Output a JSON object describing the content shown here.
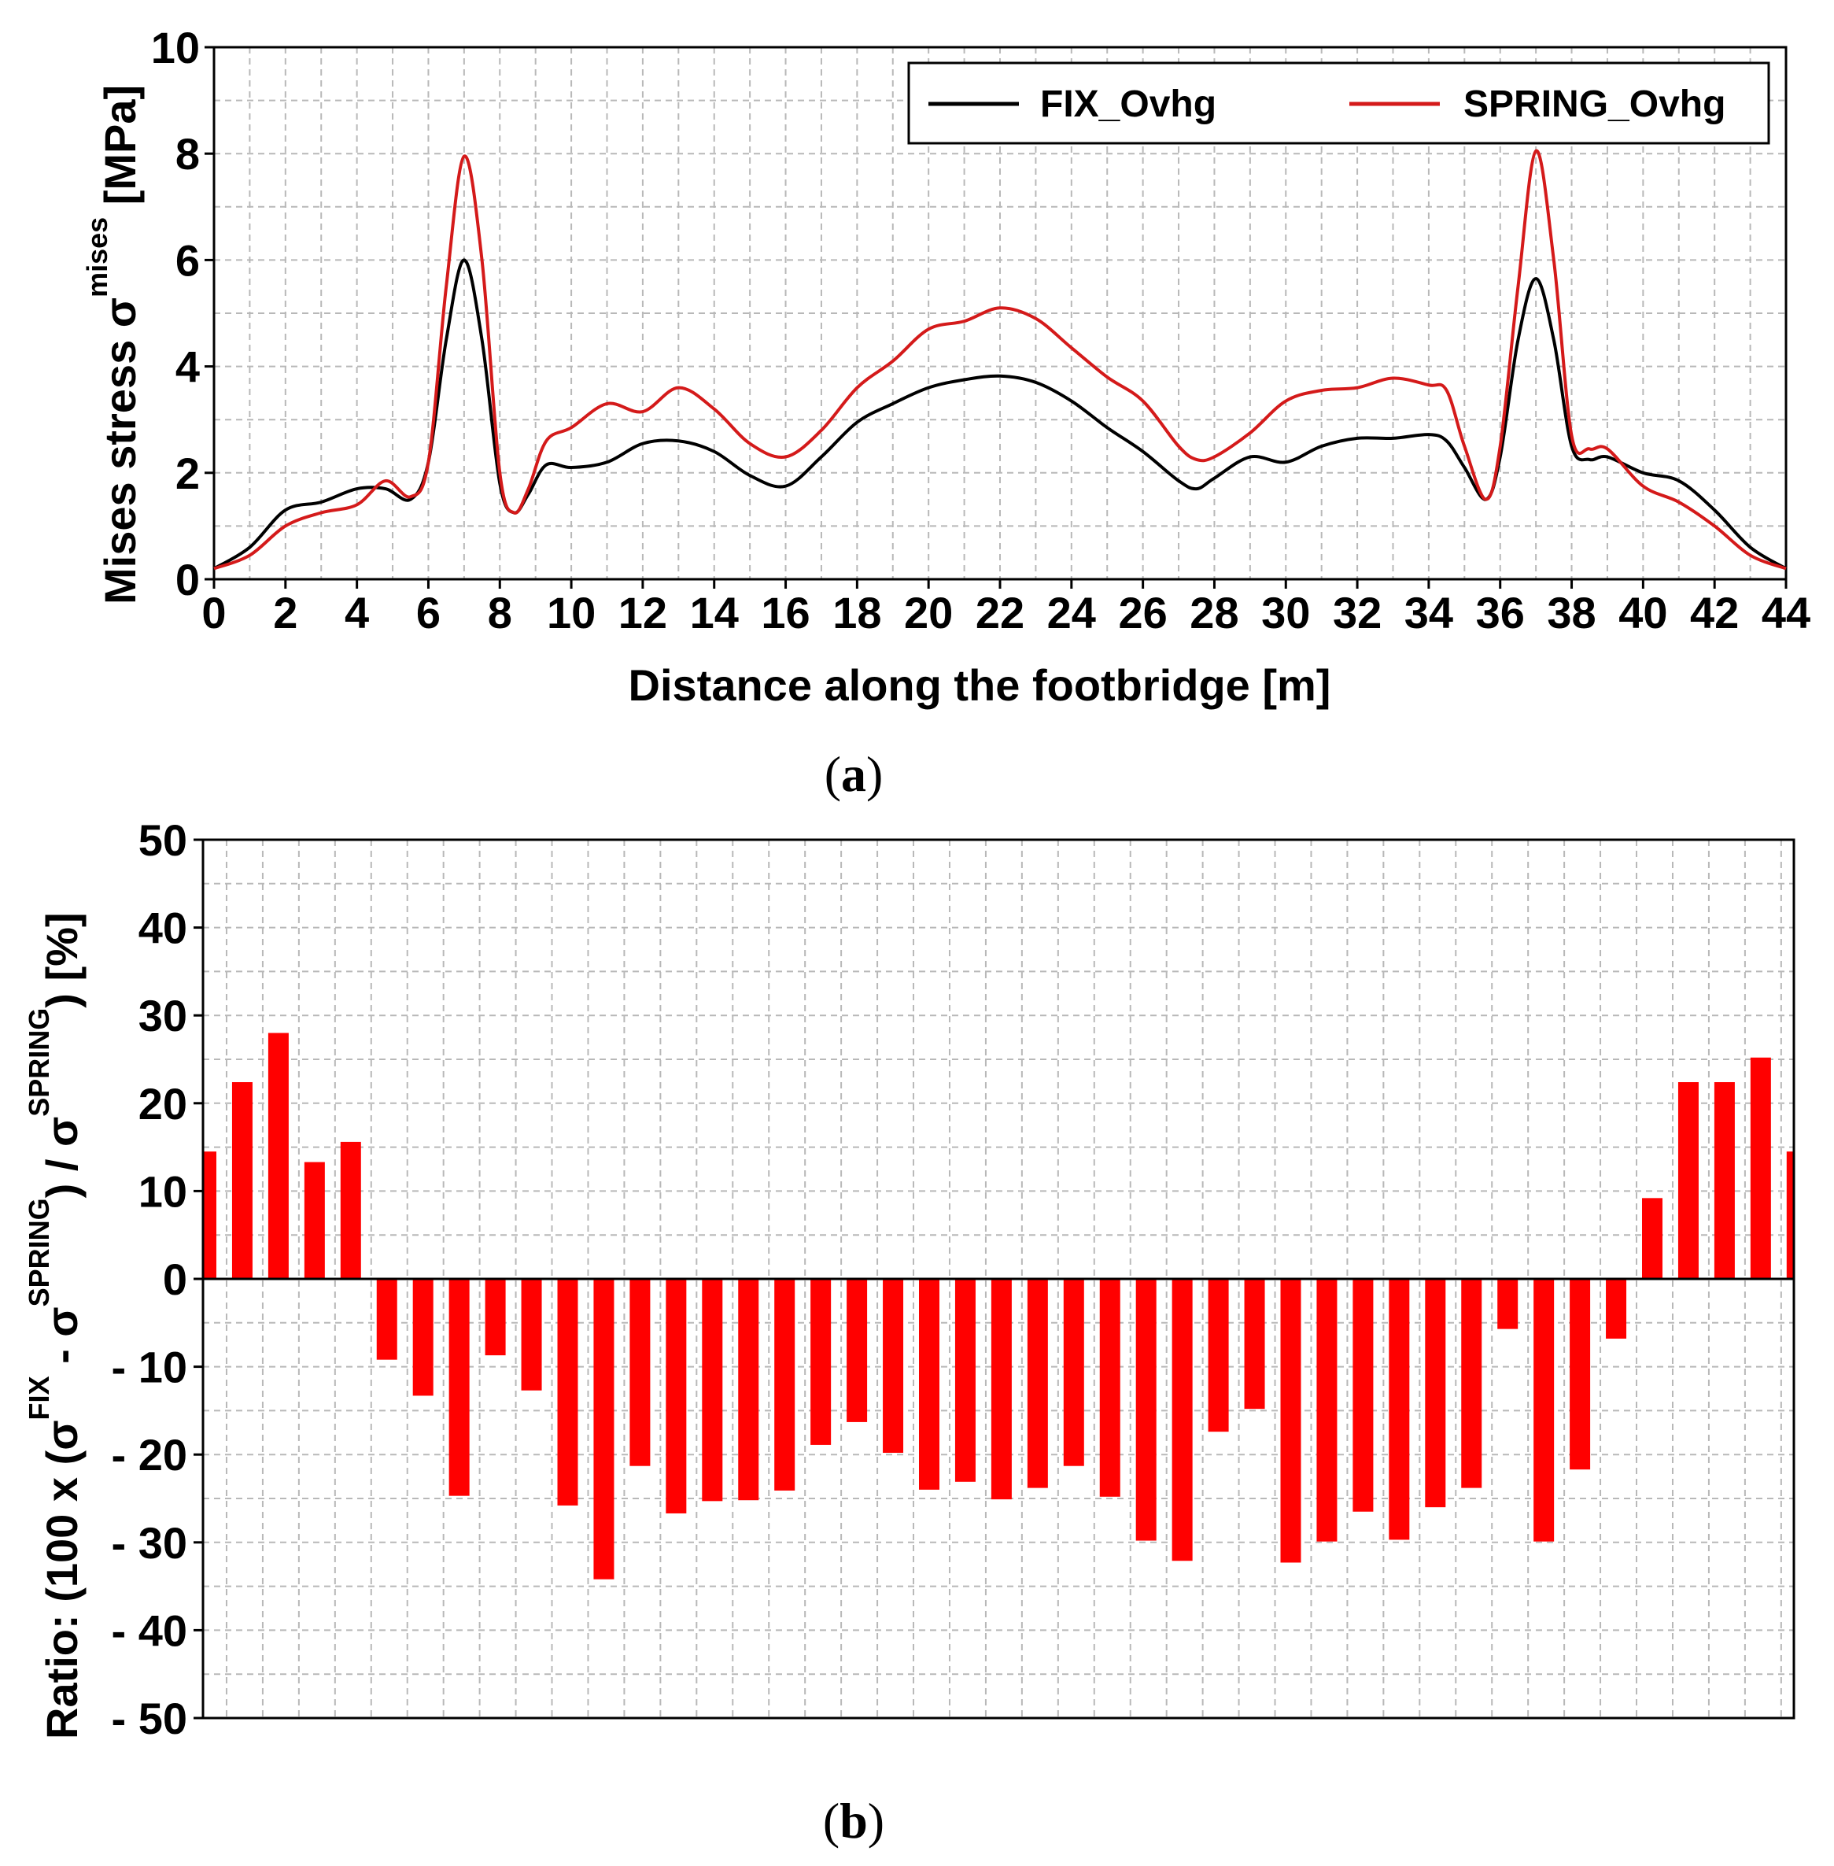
{
  "chart_data": [
    {
      "id": "a",
      "type": "line",
      "caption": "a",
      "xlabel": "Distance along the footbridge [m]",
      "ylabel": {
        "main": "Mises stress σ",
        "sup": "mises",
        "unit": "[MPa]"
      },
      "xlim": [
        0,
        44
      ],
      "ylim": [
        0,
        10
      ],
      "xticks": [
        "0",
        "2",
        "4",
        "6",
        "8",
        "10",
        "12",
        "14",
        "16",
        "18",
        "20",
        "22",
        "24",
        "26",
        "28",
        "30",
        "32",
        "34",
        "36",
        "38",
        "40",
        "42",
        "44"
      ],
      "yticks": [
        "0",
        "2",
        "4",
        "6",
        "8",
        "10"
      ],
      "grid": true,
      "legend_position": "top-right",
      "series": [
        {
          "name": "FIX_Ovhg",
          "color": "#000000",
          "x": [
            0,
            1,
            2,
            3,
            4,
            4.8,
            5.5,
            6,
            6.5,
            7,
            7.5,
            8,
            8.4,
            8.8,
            9.3,
            10,
            11,
            12,
            13,
            14,
            15,
            16,
            17,
            18,
            19,
            20,
            21,
            22,
            23,
            24,
            25,
            26,
            27,
            27.5,
            28,
            29,
            30,
            31,
            32,
            33,
            34,
            34.5,
            35,
            35.6,
            36,
            36.5,
            37,
            37.5,
            38,
            38.5,
            39,
            40,
            41,
            42,
            43,
            44
          ],
          "y": [
            0.2,
            0.6,
            1.3,
            1.45,
            1.7,
            1.7,
            1.5,
            2.2,
            4.5,
            6.0,
            4.5,
            1.8,
            1.25,
            1.6,
            2.15,
            2.1,
            2.2,
            2.55,
            2.6,
            2.4,
            1.95,
            1.75,
            2.3,
            2.95,
            3.3,
            3.6,
            3.75,
            3.82,
            3.7,
            3.35,
            2.85,
            2.4,
            1.85,
            1.7,
            1.9,
            2.3,
            2.2,
            2.5,
            2.65,
            2.65,
            2.72,
            2.6,
            2.1,
            1.5,
            2.3,
            4.5,
            5.65,
            4.5,
            2.5,
            2.25,
            2.3,
            2.0,
            1.85,
            1.3,
            0.6,
            0.2
          ]
        },
        {
          "name": "SPRING_Ovhg",
          "color": "#d41a1a",
          "x": [
            0,
            1,
            2,
            3,
            4,
            4.8,
            5.5,
            6,
            6.5,
            7,
            7.5,
            8,
            8.4,
            8.8,
            9.3,
            10,
            11,
            12,
            13,
            14,
            15,
            16,
            17,
            18,
            19,
            20,
            21,
            22,
            23,
            24,
            25,
            26,
            27,
            27.5,
            28,
            29,
            30,
            31,
            32,
            33,
            34,
            34.5,
            35,
            35.6,
            36,
            36.5,
            37,
            37.5,
            38,
            38.5,
            39,
            40,
            41,
            42,
            43,
            44
          ],
          "y": [
            0.2,
            0.45,
            1.0,
            1.25,
            1.4,
            1.85,
            1.55,
            2.2,
            5.5,
            7.95,
            6.0,
            2.0,
            1.25,
            1.7,
            2.6,
            2.85,
            3.3,
            3.15,
            3.6,
            3.2,
            2.55,
            2.3,
            2.8,
            3.6,
            4.1,
            4.7,
            4.85,
            5.1,
            4.9,
            4.35,
            3.8,
            3.35,
            2.5,
            2.25,
            2.3,
            2.75,
            3.35,
            3.55,
            3.6,
            3.78,
            3.65,
            3.55,
            2.5,
            1.5,
            2.5,
            5.5,
            8.05,
            6.0,
            2.7,
            2.45,
            2.45,
            1.75,
            1.45,
            1.0,
            0.45,
            0.2
          ]
        }
      ]
    },
    {
      "id": "b",
      "type": "bar",
      "caption": "b",
      "ylabel": {
        "prefix": "Ratio: (100 x (σ",
        "sup1": "FIX",
        "mid1": " - σ",
        "sup2": "SPRING",
        "mid2": ") / σ",
        "sup3": "SPRING",
        "suffix": ") [%]"
      },
      "ylim": [
        -50,
        50
      ],
      "yticks": [
        "50",
        "40",
        "30",
        "20",
        "10",
        "0",
        "- 10",
        "- 20",
        "- 30",
        "- 40",
        "- 50"
      ],
      "grid": true,
      "color": "#ff0000",
      "x": [
        0,
        1,
        2,
        3,
        4,
        5,
        6,
        7,
        8,
        9,
        10,
        11,
        12,
        13,
        14,
        15,
        16,
        17,
        18,
        19,
        20,
        21,
        22,
        23,
        24,
        25,
        26,
        27,
        28,
        29,
        30,
        31,
        32,
        33,
        34,
        35,
        36,
        37,
        38,
        39,
        40,
        41,
        42,
        43,
        44
      ],
      "values": [
        14.5,
        22.4,
        28,
        13.3,
        15.6,
        -9.2,
        -13.3,
        -24.7,
        -8.7,
        -12.7,
        -25.8,
        -34.2,
        -21.3,
        -26.7,
        -25.3,
        -25.2,
        -24.1,
        -18.9,
        -16.3,
        -19.8,
        -24,
        -23.1,
        -25.1,
        -23.8,
        -21.3,
        -24.8,
        -29.8,
        -32.1,
        -17.4,
        -14.8,
        -32.3,
        -29.9,
        -26.5,
        -29.7,
        -26,
        -23.8,
        -5.7,
        -29.9,
        -21.7,
        -6.8,
        9.2,
        22.4,
        22.4,
        25.2,
        14.5
      ]
    }
  ],
  "legend": {
    "fix_label": "FIX_Ovhg",
    "spring_label": "SPRING_Ovhg"
  },
  "colors": {
    "fix": "#000000",
    "spring": "#d41a1a",
    "bars": "#ff0000",
    "grid": "#b8b8b8"
  }
}
